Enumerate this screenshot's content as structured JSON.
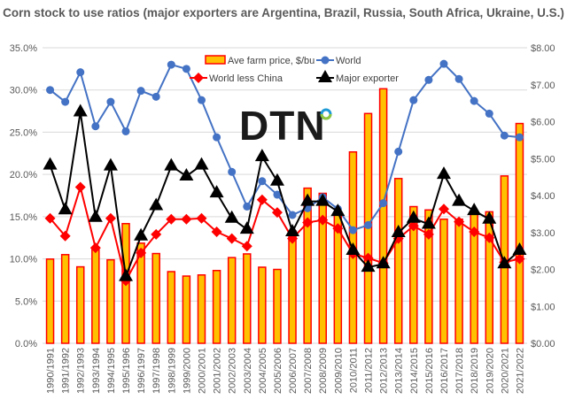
{
  "chart_data": {
    "type": "bar+line",
    "title": "Corn stock to use ratios (major exporters are Argentina, Brazil, Russia, South Africa, Ukraine, U.S.)",
    "categories": [
      "1990/1991",
      "1991/1992",
      "1992/1993",
      "1993/1994",
      "1994/1995",
      "1995/1996",
      "1996/1997",
      "1997/1998",
      "1998/1999",
      "1999/2000",
      "2000/2001",
      "2001/2002",
      "2002/2003",
      "2003/2004",
      "2004/2005",
      "2005/2006",
      "2006/2007",
      "2007/2008",
      "2008/2009",
      "2009/2010",
      "2010/2011",
      "2011/2012",
      "2012/2013",
      "2013/2014",
      "2014/2015",
      "2015/2016",
      "2016/2017",
      "2017/2018",
      "2018/2019",
      "2019/2020",
      "2020/2021",
      "2021/2022"
    ],
    "left_axis": {
      "min": 0,
      "max": 35,
      "ticks": [
        "0.0%",
        "5.0%",
        "10.0%",
        "15.0%",
        "20.0%",
        "25.0%",
        "30.0%",
        "35.0%"
      ]
    },
    "right_axis": {
      "min": 0,
      "max": 8,
      "ticks": [
        "$0.00",
        "$1.00",
        "$2.00",
        "$3.00",
        "$4.00",
        "$5.00",
        "$6.00",
        "$7.00",
        "$8.00"
      ]
    },
    "grid": true,
    "legend_placement": "top-center",
    "series": [
      {
        "name": "Ave farm price, $/bu",
        "type": "bar",
        "axis": "right",
        "color": "#FFC000",
        "edge": "#FF0000",
        "values": [
          2.28,
          2.4,
          2.07,
          2.54,
          2.26,
          3.24,
          2.71,
          2.43,
          1.94,
          1.82,
          1.85,
          1.97,
          2.32,
          2.42,
          2.06,
          2.0,
          3.04,
          4.2,
          4.06,
          3.55,
          5.18,
          6.22,
          6.89,
          4.46,
          3.7,
          3.61,
          3.36,
          3.36,
          3.56,
          3.56,
          4.53,
          5.95
        ]
      },
      {
        "name": "World",
        "type": "line",
        "axis": "left",
        "color": "#4472C4",
        "marker": "circle",
        "values": [
          30.0,
          28.6,
          32.1,
          25.7,
          28.6,
          25.1,
          29.9,
          29.2,
          33.0,
          32.5,
          28.8,
          24.4,
          20.3,
          16.2,
          19.2,
          17.6,
          15.2,
          16.0,
          17.3,
          15.9,
          13.4,
          14.0,
          16.6,
          22.7,
          28.8,
          31.2,
          33.1,
          31.3,
          28.7,
          27.2,
          24.6,
          24.4
        ]
      },
      {
        "name": "World less China",
        "type": "line",
        "axis": "left",
        "color": "#FF0000",
        "marker": "diamond",
        "values": [
          14.8,
          12.7,
          18.5,
          11.3,
          14.8,
          7.4,
          10.7,
          12.9,
          14.7,
          14.7,
          14.8,
          13.2,
          12.4,
          11.5,
          17.0,
          15.5,
          12.4,
          14.3,
          14.6,
          13.6,
          10.6,
          10.1,
          9.5,
          12.4,
          13.9,
          12.9,
          15.9,
          14.4,
          13.2,
          12.5,
          9.6,
          10.0
        ]
      },
      {
        "name": "Major exporter",
        "type": "line",
        "axis": "left",
        "color": "#000000",
        "marker": "triangle",
        "values": [
          21.1,
          15.8,
          27.4,
          14.9,
          21.0,
          7.9,
          12.7,
          16.3,
          21.0,
          19.8,
          21.1,
          17.8,
          14.8,
          13.5,
          22.1,
          19.2,
          13.2,
          16.8,
          16.8,
          15.6,
          11.0,
          9.0,
          9.4,
          13.1,
          14.8,
          14.1,
          20.0,
          16.8,
          15.7,
          14.7,
          9.4,
          11.0
        ]
      }
    ]
  },
  "logo": {
    "text": "DTN"
  }
}
